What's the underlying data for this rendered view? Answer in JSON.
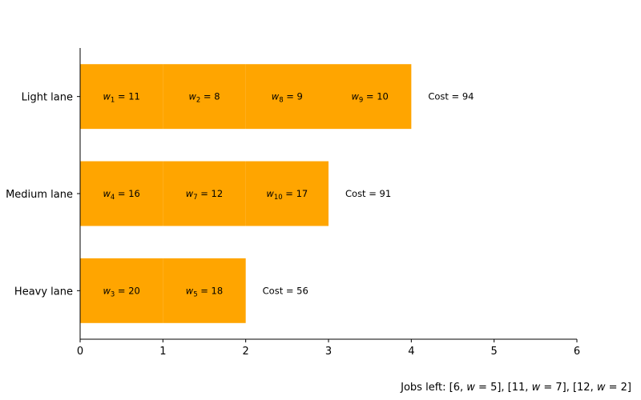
{
  "chart_data": {
    "type": "bar",
    "orientation": "horizontal",
    "bar_color": "#FFA500",
    "categories": [
      "Light lane",
      "Medium lane",
      "Heavy lane"
    ],
    "xlim": [
      0,
      6
    ],
    "xticks": [
      "0",
      "1",
      "2",
      "3",
      "4",
      "5",
      "6"
    ],
    "lanes": [
      {
        "name": "Light lane",
        "value": 4,
        "cost_label": "Cost = 94",
        "jobs": [
          {
            "index": "1",
            "weight": "11"
          },
          {
            "index": "2",
            "weight": "8"
          },
          {
            "index": "8",
            "weight": "9"
          },
          {
            "index": "9",
            "weight": "10"
          }
        ]
      },
      {
        "name": "Medium lane",
        "value": 3,
        "cost_label": "Cost = 91",
        "jobs": [
          {
            "index": "4",
            "weight": "16"
          },
          {
            "index": "7",
            "weight": "12"
          },
          {
            "index": "10",
            "weight": "17"
          }
        ]
      },
      {
        "name": "Heavy lane",
        "value": 2,
        "cost_label": "Cost = 56",
        "jobs": [
          {
            "index": "3",
            "weight": "20"
          },
          {
            "index": "5",
            "weight": "18"
          }
        ]
      }
    ],
    "footnote": {
      "prefix": "Jobs left: ",
      "items": [
        {
          "job": "6",
          "weight": "5"
        },
        {
          "job": "11",
          "weight": "7"
        },
        {
          "job": "12",
          "weight": "2"
        }
      ]
    }
  }
}
